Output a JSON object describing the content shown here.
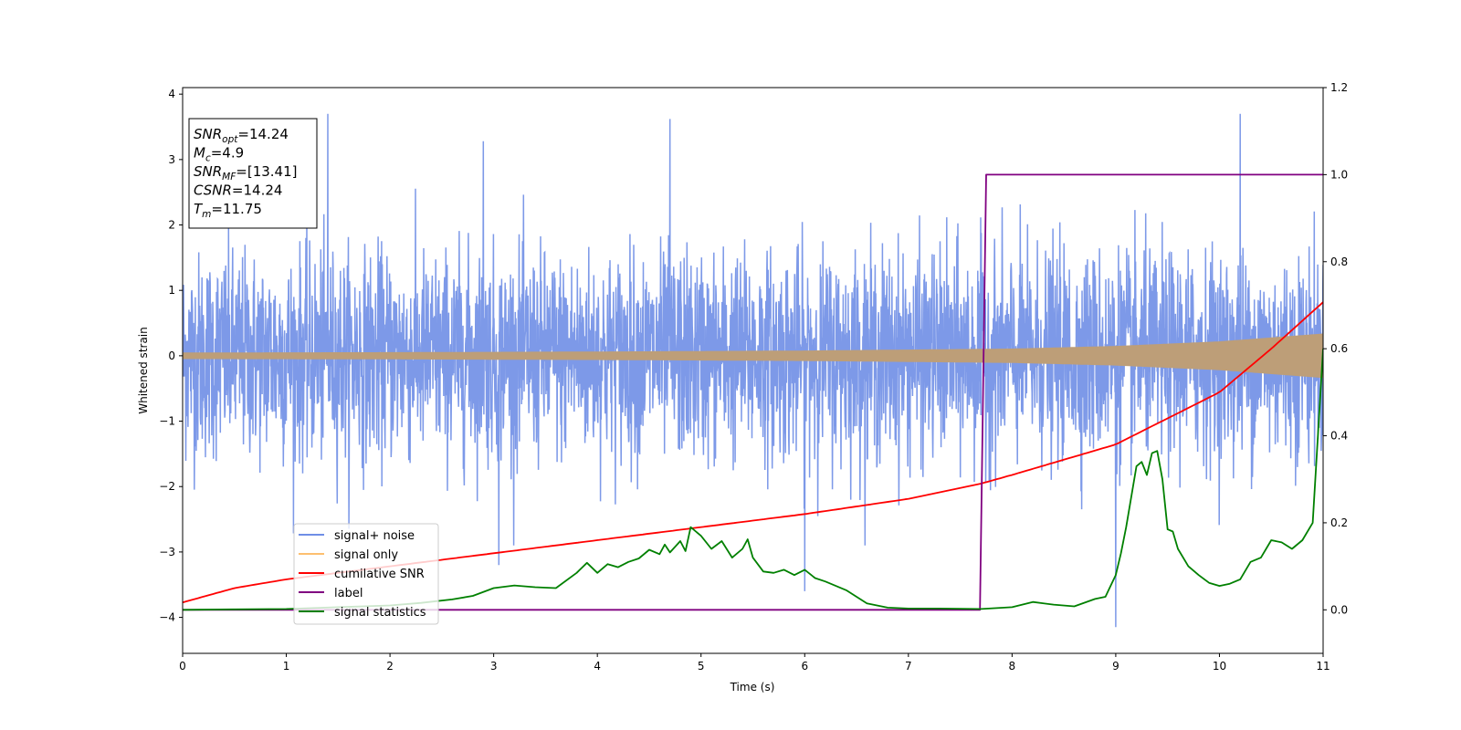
{
  "chart_data": {
    "type": "line",
    "title": "",
    "xlabel": "Time (s)",
    "ylabel": "Whitened strain",
    "y2label": "",
    "xlim": [
      0,
      11
    ],
    "ylim": [
      -4.55,
      4.1
    ],
    "y2lim": [
      -0.1,
      1.2
    ],
    "xticks": [
      0,
      1,
      2,
      3,
      4,
      5,
      6,
      7,
      8,
      9,
      10,
      11
    ],
    "yticks": [
      -4,
      -3,
      -2,
      -1,
      0,
      1,
      2,
      3,
      4
    ],
    "y2ticks": [
      0.0,
      0.2,
      0.4,
      0.6,
      0.8,
      1.0,
      1.2
    ],
    "yticklabels": [
      "−4",
      "−3",
      "−2",
      "−1",
      "0",
      "1",
      "2",
      "3",
      "4"
    ],
    "y2ticklabels": [
      "0.0",
      "0.2",
      "0.4",
      "0.6",
      "0.8",
      "1.0",
      "1.2"
    ],
    "grid": false,
    "legend_position": "lower-left",
    "annotation": {
      "lines": [
        {
          "sym": "SNR",
          "sub": "opt",
          "val": "=14.24"
        },
        {
          "sym": "M",
          "sub": "c",
          "val": "=4.9"
        },
        {
          "sym": "SNR",
          "sub": "MF",
          "val": "=[13.41]"
        },
        {
          "sym": "CSNR",
          "sub": "",
          "val": "=14.24"
        },
        {
          "sym": "T",
          "sub": "m",
          "val": "=11.75"
        }
      ]
    },
    "series": [
      {
        "name": "signal+ noise",
        "axis": "left",
        "color": "#6f8ee6",
        "kind": "noise",
        "x": [
          0,
          1.4,
          2.9,
          3.05,
          4.7,
          6.0,
          9.0,
          10.2,
          11
        ],
        "y": [
          0,
          3.7,
          3.28,
          -3.2,
          3.62,
          -3.6,
          -4.15,
          3.7,
          0
        ],
        "std": 0.78
      },
      {
        "name": "signal only",
        "axis": "left",
        "color": "#fdbf6f",
        "kind": "envelope",
        "x": [
          0,
          2,
          4,
          6,
          8,
          9,
          10,
          11
        ],
        "y": [
          0.05,
          0.055,
          0.065,
          0.08,
          0.11,
          0.15,
          0.22,
          0.34
        ]
      },
      {
        "name": "cumilative SNR",
        "axis": "right",
        "color": "#ff0000",
        "x": [
          0,
          0.5,
          1,
          2,
          3,
          4,
          5,
          6,
          7,
          7.7,
          8,
          9,
          10,
          10.5,
          11
        ],
        "y": [
          0.017,
          0.05,
          0.07,
          0.1,
          0.13,
          0.16,
          0.19,
          0.22,
          0.255,
          0.29,
          0.31,
          0.38,
          0.5,
          0.6,
          0.707
        ]
      },
      {
        "name": "label",
        "axis": "right",
        "color": "#800080",
        "x": [
          0,
          7.69,
          7.75,
          11
        ],
        "y": [
          0,
          0,
          1,
          1
        ]
      },
      {
        "name": "signal statistics",
        "axis": "right",
        "color": "#008000",
        "x": [
          0,
          0.5,
          1,
          1.5,
          2,
          2.3,
          2.6,
          2.8,
          3.0,
          3.2,
          3.4,
          3.6,
          3.8,
          3.9,
          4.0,
          4.1,
          4.2,
          4.3,
          4.4,
          4.5,
          4.6,
          4.65,
          4.7,
          4.8,
          4.85,
          4.9,
          5.0,
          5.1,
          5.2,
          5.3,
          5.4,
          5.45,
          5.5,
          5.6,
          5.7,
          5.8,
          5.9,
          6.0,
          6.1,
          6.2,
          6.4,
          6.6,
          6.8,
          7.0,
          7.3,
          7.7,
          8.0,
          8.2,
          8.4,
          8.6,
          8.8,
          8.9,
          9.0,
          9.05,
          9.1,
          9.2,
          9.25,
          9.3,
          9.35,
          9.4,
          9.45,
          9.5,
          9.55,
          9.6,
          9.7,
          9.8,
          9.9,
          10.0,
          10.1,
          10.2,
          10.3,
          10.4,
          10.5,
          10.6,
          10.7,
          10.8,
          10.9,
          11.0
        ],
        "y": [
          0.0,
          0.001,
          0.002,
          0.006,
          0.01,
          0.016,
          0.024,
          0.032,
          0.05,
          0.056,
          0.052,
          0.05,
          0.085,
          0.108,
          0.085,
          0.105,
          0.098,
          0.11,
          0.118,
          0.138,
          0.128,
          0.15,
          0.132,
          0.158,
          0.135,
          0.19,
          0.17,
          0.14,
          0.158,
          0.12,
          0.14,
          0.162,
          0.12,
          0.088,
          0.085,
          0.092,
          0.08,
          0.092,
          0.073,
          0.065,
          0.045,
          0.015,
          0.005,
          0.003,
          0.003,
          0.002,
          0.006,
          0.018,
          0.012,
          0.008,
          0.025,
          0.03,
          0.08,
          0.13,
          0.19,
          0.33,
          0.34,
          0.31,
          0.36,
          0.365,
          0.3,
          0.185,
          0.18,
          0.14,
          0.1,
          0.08,
          0.062,
          0.055,
          0.06,
          0.07,
          0.11,
          0.12,
          0.16,
          0.155,
          0.14,
          0.16,
          0.2,
          0.6
        ]
      }
    ]
  }
}
